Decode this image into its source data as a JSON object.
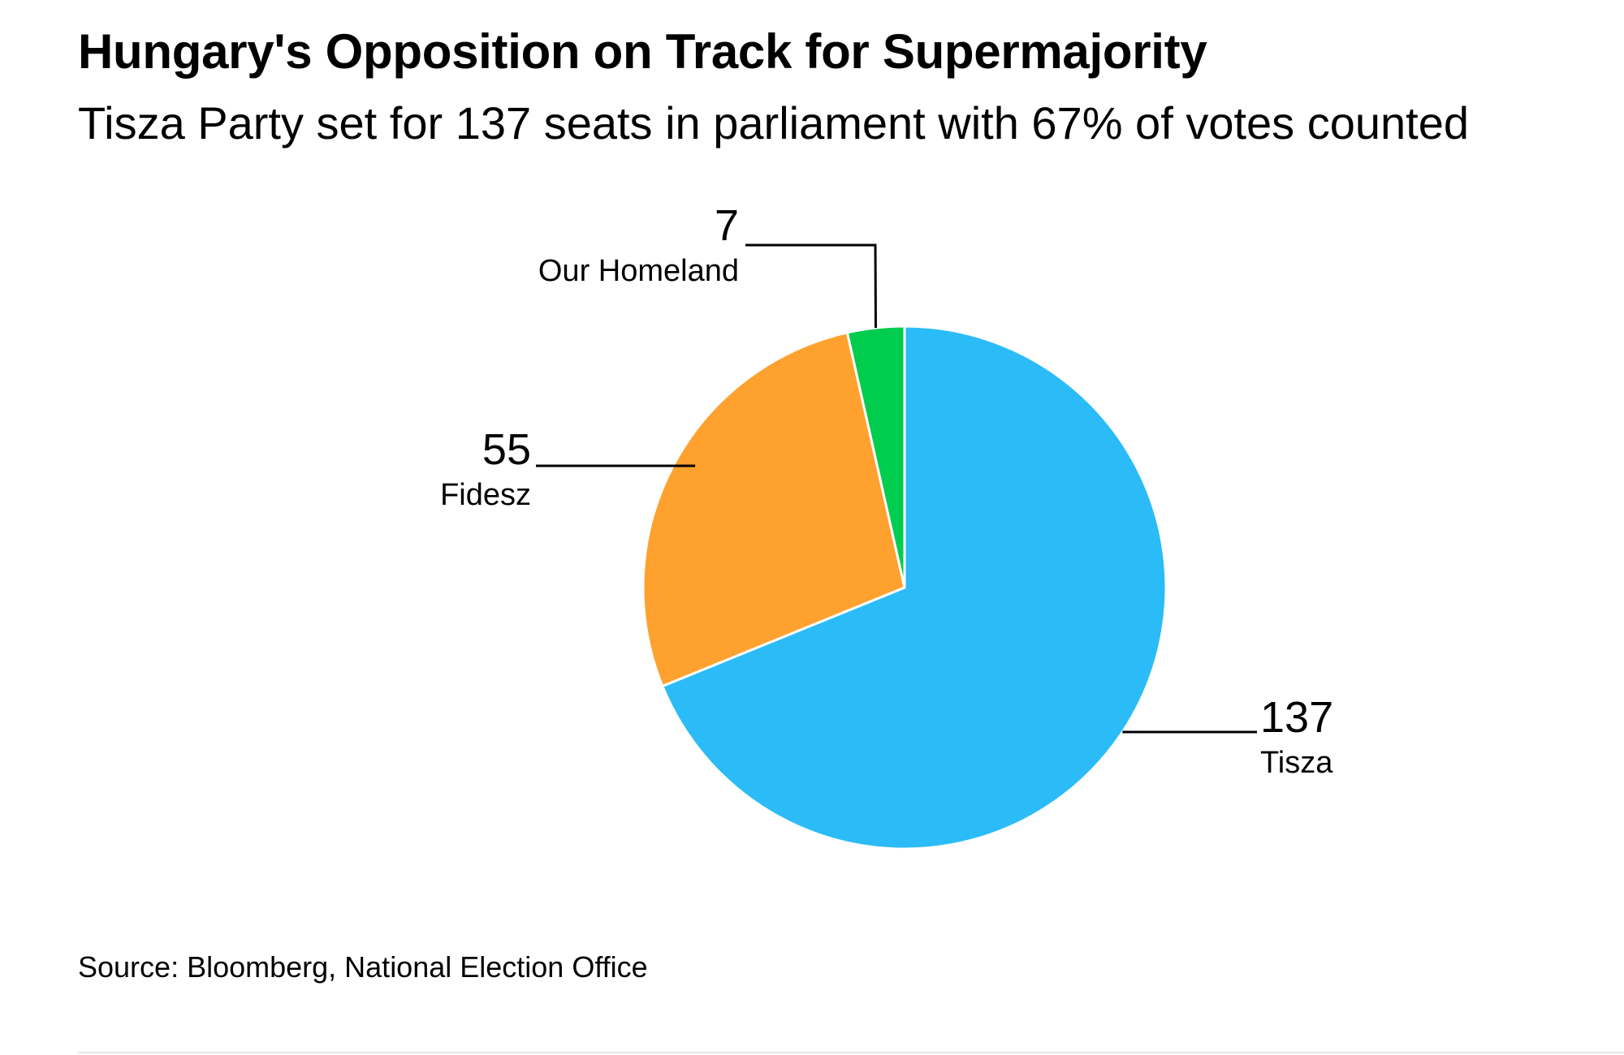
{
  "chart_data": {
    "type": "pie",
    "title": "Hungary's Opposition on Track for Supermajority",
    "subtitle": "Tisza Party set for 137 seats in parliament with 67% of votes counted",
    "source": "Source: Bloomberg, National Election Office",
    "slices": [
      {
        "label": "Tisza",
        "value": 137,
        "value_label": "137",
        "color": "#2bbcf7"
      },
      {
        "label": "Fidesz",
        "value": 55,
        "value_label": "55",
        "color": "#ffa12e"
      },
      {
        "label": "Our Homeland",
        "value": 7,
        "value_label": "7",
        "color": "#00cc4e"
      }
    ]
  }
}
